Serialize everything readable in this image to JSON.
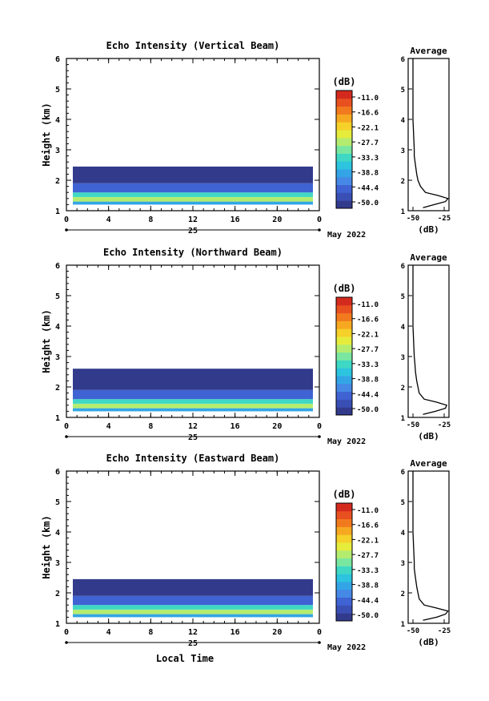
{
  "footer": {
    "label": "Local Time"
  },
  "shared": {
    "x_ticks": [
      "0",
      "4",
      "8",
      "12",
      "16",
      "20",
      "0"
    ],
    "day": "25",
    "month_label": "May 2022",
    "y_label": "Height (km)",
    "y_ticks": [
      "1",
      "2",
      "3",
      "4",
      "5",
      "6"
    ],
    "colorbar_unit": "(dB)",
    "colorbar_ticks": [
      "-11.0",
      "-16.6",
      "-22.1",
      "-27.7",
      "-33.3",
      "-38.8",
      "-44.4",
      "-50.0"
    ],
    "avg_title": "Average",
    "avg_xticks": [
      "-50",
      "-25"
    ],
    "avg_xlabel": "(dB)",
    "colors": [
      "#323a8c",
      "#3a4fb4",
      "#3f63d3",
      "#4688e6",
      "#33a5e6",
      "#2dc4e0",
      "#3fd8c4",
      "#7ae7a0",
      "#b4ec70",
      "#e6ec3c",
      "#f5d12a",
      "#f7a821",
      "#f27a1e",
      "#e85020",
      "#d42a1e"
    ]
  },
  "chart_data": [
    {
      "type": "heatmap",
      "title": "Echo Intensity (Vertical Beam)",
      "xlabel": "",
      "ylabel": "Height (km)",
      "xlim": [
        0,
        24
      ],
      "ylim": [
        1,
        6
      ],
      "clim": [
        -50.0,
        -11.0
      ],
      "bands": [
        {
          "from": 1.2,
          "to": 1.3,
          "value": -38.8
        },
        {
          "from": 1.3,
          "to": 1.45,
          "value": -27.7
        },
        {
          "from": 1.45,
          "to": 1.6,
          "value": -33.3
        },
        {
          "from": 1.6,
          "to": 1.9,
          "value": -44.4
        },
        {
          "from": 1.9,
          "to": 2.45,
          "value": -50.0
        }
      ],
      "average": {
        "heights": [
          1.1,
          1.2,
          1.3,
          1.4,
          1.5,
          1.6,
          1.8,
          2.0,
          2.2,
          2.5,
          2.8,
          3.0,
          3.5,
          4.0,
          4.5,
          5.0,
          5.5,
          6.0
        ],
        "values": [
          -42,
          -33,
          -24,
          -22,
          -30,
          -40,
          -44,
          -46,
          -47,
          -48,
          -49,
          -49,
          -49.5,
          -50,
          -50,
          -50,
          -50,
          -50
        ]
      }
    },
    {
      "type": "heatmap",
      "title": "Echo Intensity (Northward Beam)",
      "xlabel": "",
      "ylabel": "Height (km)",
      "xlim": [
        0,
        24
      ],
      "ylim": [
        1,
        6
      ],
      "clim": [
        -50.0,
        -11.0
      ],
      "bands": [
        {
          "from": 1.2,
          "to": 1.3,
          "value": -38.8
        },
        {
          "from": 1.3,
          "to": 1.45,
          "value": -27.7
        },
        {
          "from": 1.45,
          "to": 1.6,
          "value": -33.3
        },
        {
          "from": 1.6,
          "to": 1.9,
          "value": -44.4
        },
        {
          "from": 1.9,
          "to": 2.6,
          "value": -50.0
        }
      ],
      "average": {
        "heights": [
          1.1,
          1.2,
          1.3,
          1.4,
          1.5,
          1.6,
          1.8,
          2.0,
          2.2,
          2.5,
          2.8,
          3.0,
          3.5,
          4.0,
          4.5,
          5.0,
          5.5,
          6.0
        ],
        "values": [
          -42,
          -32,
          -24,
          -23,
          -31,
          -41,
          -45,
          -46,
          -47,
          -48,
          -48.5,
          -49,
          -49.5,
          -50,
          -50,
          -50,
          -50,
          -50
        ]
      }
    },
    {
      "type": "heatmap",
      "title": "Echo Intensity (Eastward Beam)",
      "xlabel": "Local Time",
      "ylabel": "Height (km)",
      "xlim": [
        0,
        24
      ],
      "ylim": [
        1,
        6
      ],
      "clim": [
        -50.0,
        -11.0
      ],
      "bands": [
        {
          "from": 1.2,
          "to": 1.3,
          "value": -38.8
        },
        {
          "from": 1.3,
          "to": 1.45,
          "value": -27.7
        },
        {
          "from": 1.45,
          "to": 1.6,
          "value": -33.3
        },
        {
          "from": 1.6,
          "to": 1.9,
          "value": -44.4
        },
        {
          "from": 1.9,
          "to": 2.45,
          "value": -50.0
        }
      ],
      "average": {
        "heights": [
          1.1,
          1.2,
          1.3,
          1.4,
          1.5,
          1.6,
          1.8,
          2.0,
          2.2,
          2.5,
          2.8,
          3.0,
          3.5,
          4.0,
          4.5,
          5.0,
          5.5,
          6.0
        ],
        "values": [
          -42,
          -31,
          -24,
          -22,
          -31,
          -41,
          -45,
          -46,
          -47,
          -48,
          -49,
          -49,
          -49.5,
          -50,
          -50,
          -50,
          -50,
          -50
        ]
      }
    }
  ]
}
